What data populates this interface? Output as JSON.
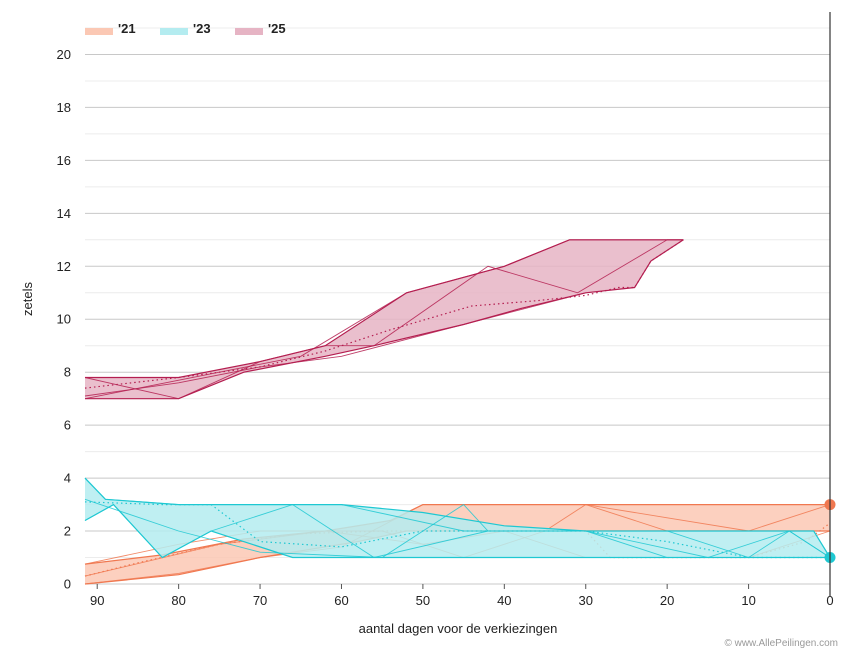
{
  "chart_data": {
    "type": "area",
    "xlabel": "aantal dagen voor de verkiezingen",
    "ylabel": "zetels",
    "xlim": [
      91.5,
      0
    ],
    "ylim": [
      0,
      21
    ],
    "x_ticks": [
      90,
      80,
      70,
      60,
      50,
      40,
      30,
      20,
      10,
      0
    ],
    "y_ticks": [
      0,
      2,
      4,
      6,
      8,
      10,
      12,
      14,
      16,
      18,
      20
    ],
    "credit": "© www.AllePeilingen.com",
    "series": [
      {
        "name": "'21",
        "color": "#f07850",
        "fill": "#fbc8b4",
        "band_upper": [
          [
            91.5,
            0.75
          ],
          [
            82,
            1.1
          ],
          [
            72,
            1.7
          ],
          [
            62,
            2.0
          ],
          [
            54,
            2.4
          ],
          [
            50,
            3.0
          ],
          [
            30,
            3.0
          ],
          [
            0,
            3.0
          ]
        ],
        "band_lower": [
          [
            91.5,
            0.0
          ],
          [
            80,
            0.35
          ],
          [
            70,
            1.0
          ],
          [
            58,
            1.6
          ],
          [
            52,
            2.0
          ],
          [
            46,
            2.0
          ],
          [
            36,
            2.0
          ],
          [
            25,
            2.0
          ],
          [
            0,
            2.0
          ]
        ],
        "lines": [
          [
            [
              91.5,
              0.75
            ],
            [
              80,
              1.5
            ],
            [
              70,
              2.0
            ],
            [
              55,
              2.0
            ],
            [
              45,
              1.0
            ],
            [
              35,
              2.0
            ],
            [
              30,
              3.0
            ],
            [
              20,
              2.0
            ],
            [
              10,
              2.0
            ],
            [
              0,
              2.0
            ]
          ],
          [
            [
              91.5,
              0.0
            ],
            [
              80,
              0.4
            ],
            [
              70,
              1.0
            ],
            [
              60,
              1.4
            ],
            [
              50,
              3.0
            ],
            [
              40,
              3.0
            ],
            [
              30,
              3.0
            ],
            [
              20,
              2.5
            ],
            [
              10,
              2.0
            ],
            [
              0,
              3.0
            ]
          ],
          [
            [
              91.5,
              0.3
            ],
            [
              75,
              1.5
            ],
            [
              62,
              2.0
            ],
            [
              50,
              1.5
            ],
            [
              40,
              2.0
            ],
            [
              30,
              1.0
            ],
            [
              20,
              1.0
            ],
            [
              10,
              1.0
            ],
            [
              0,
              2.0
            ]
          ]
        ],
        "trend": [
          [
            91.5,
            0.3
          ],
          [
            85,
            0.8
          ],
          [
            75,
            1.5
          ],
          [
            65,
            1.9
          ],
          [
            55,
            2.0
          ],
          [
            50,
            2.0
          ],
          [
            45,
            2.0
          ],
          [
            35,
            2.0
          ],
          [
            30,
            2.0
          ],
          [
            27,
            1.0
          ],
          [
            20,
            1.0
          ],
          [
            10,
            1.0
          ],
          [
            3,
            1.6
          ],
          [
            0,
            2.3
          ]
        ],
        "last_value": 3
      },
      {
        "name": "'23",
        "color": "#1ec8d2",
        "fill": "#b4ecf0",
        "band_upper": [
          [
            91.5,
            4.0
          ],
          [
            89,
            3.2
          ],
          [
            80,
            3.0
          ],
          [
            70,
            3.0
          ],
          [
            60,
            3.0
          ],
          [
            50,
            2.7
          ],
          [
            40,
            2.2
          ],
          [
            30,
            2.0
          ],
          [
            20,
            2.0
          ],
          [
            10,
            2.0
          ],
          [
            2,
            2.0
          ],
          [
            0,
            1.0
          ]
        ],
        "band_lower": [
          [
            91.5,
            2.4
          ],
          [
            88,
            3.0
          ],
          [
            82,
            1.0
          ],
          [
            76,
            2.0
          ],
          [
            66,
            1.0
          ],
          [
            56,
            1.0
          ],
          [
            42,
            1.0
          ],
          [
            30,
            1.0
          ],
          [
            20,
            1.0
          ],
          [
            10,
            1.0
          ],
          [
            0,
            1.0
          ]
        ],
        "lines": [
          [
            [
              91.5,
              3.2
            ],
            [
              80,
              2.0
            ],
            [
              70,
              1.2
            ],
            [
              55,
              1.0
            ],
            [
              45,
              3.0
            ],
            [
              42,
              2.0
            ],
            [
              30,
              2.0
            ],
            [
              20,
              2.0
            ],
            [
              10,
              1.0
            ],
            [
              5,
              2.0
            ],
            [
              0,
              1.0
            ]
          ],
          [
            [
              91.5,
              4.0
            ],
            [
              89,
              3.2
            ],
            [
              80,
              3.0
            ],
            [
              60,
              3.0
            ],
            [
              45,
              2.0
            ],
            [
              30,
              2.0
            ],
            [
              15,
              1.0
            ],
            [
              5,
              2.0
            ],
            [
              0,
              1.0
            ]
          ],
          [
            [
              91.5,
              2.4
            ],
            [
              88,
              3.0
            ],
            [
              82,
              1.0
            ],
            [
              76,
              2.0
            ],
            [
              66,
              3.0
            ],
            [
              56,
              1.0
            ],
            [
              42,
              2.0
            ],
            [
              30,
              2.0
            ],
            [
              20,
              1.0
            ],
            [
              10,
              1.0
            ],
            [
              0,
              1.0
            ]
          ]
        ],
        "trend": [
          [
            91.5,
            3.1
          ],
          [
            82,
            3.0
          ],
          [
            76,
            3.0
          ],
          [
            70,
            1.6
          ],
          [
            60,
            1.4
          ],
          [
            50,
            2.0
          ],
          [
            40,
            2.0
          ],
          [
            30,
            2.0
          ],
          [
            20,
            1.6
          ],
          [
            10,
            1.0
          ],
          [
            0,
            1.0
          ]
        ],
        "last_value": 1
      },
      {
        "name": "'25",
        "color": "#b41e50",
        "fill": "#e6b4c4",
        "band_upper": [
          [
            91.5,
            7.8
          ],
          [
            80,
            7.8
          ],
          [
            70,
            8.4
          ],
          [
            62,
            9.0
          ],
          [
            52,
            11.0
          ],
          [
            40,
            12.0
          ],
          [
            32,
            13.0
          ],
          [
            26,
            13.0
          ],
          [
            18,
            13.0
          ]
        ],
        "band_lower": [
          [
            91.5,
            7.0
          ],
          [
            80,
            7.0
          ],
          [
            72,
            8.0
          ],
          [
            62,
            8.6
          ],
          [
            56,
            9.0
          ],
          [
            45,
            9.8
          ],
          [
            38,
            10.4
          ],
          [
            30,
            11.0
          ],
          [
            24,
            11.2
          ],
          [
            22,
            12.2
          ],
          [
            18,
            13.0
          ]
        ],
        "lines": [
          [
            [
              91.5,
              7.8
            ],
            [
              80,
              7.0
            ],
            [
              70,
              8.4
            ],
            [
              62,
              9.0
            ],
            [
              56,
              9.0
            ],
            [
              42,
              12.0
            ],
            [
              31,
              11.0
            ],
            [
              20,
              13.0
            ],
            [
              18,
              13.0
            ]
          ],
          [
            [
              91.5,
              7.0
            ],
            [
              75,
              8.0
            ],
            [
              65,
              8.6
            ],
            [
              52,
              11.0
            ],
            [
              40,
              12.0
            ],
            [
              32,
              13.0
            ],
            [
              18,
              13.0
            ]
          ],
          [
            [
              91.5,
              7.1
            ],
            [
              80,
              7.6
            ],
            [
              70,
              8.2
            ],
            [
              60,
              8.6
            ],
            [
              50,
              9.4
            ],
            [
              40,
              10.2
            ],
            [
              30,
              11.0
            ]
          ]
        ],
        "trend": [
          [
            91.5,
            7.4
          ],
          [
            80,
            7.8
          ],
          [
            70,
            8.2
          ],
          [
            62,
            8.8
          ],
          [
            54,
            9.6
          ],
          [
            44,
            10.5
          ],
          [
            36,
            10.7
          ],
          [
            30,
            10.9
          ],
          [
            26,
            11.2
          ],
          [
            24,
            11.2
          ],
          [
            22,
            12.2
          ],
          [
            18,
            13.0
          ]
        ],
        "last_value": null
      }
    ]
  }
}
